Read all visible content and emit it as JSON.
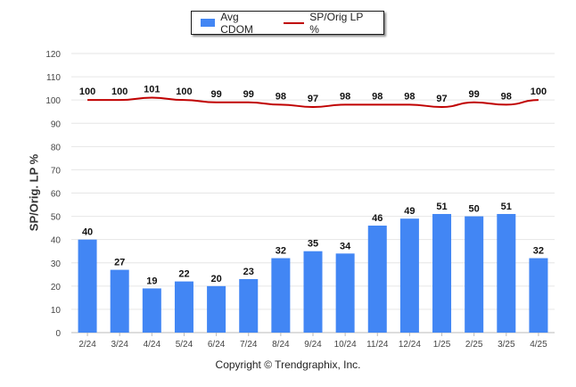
{
  "chart_data": {
    "type": "bar",
    "categories": [
      "2/24",
      "3/24",
      "4/24",
      "5/24",
      "6/24",
      "7/24",
      "8/24",
      "9/24",
      "10/24",
      "11/24",
      "12/24",
      "1/25",
      "2/25",
      "3/25",
      "4/25"
    ],
    "series": [
      {
        "name": "Avg CDOM",
        "type": "bar",
        "color": "#4286f4",
        "values": [
          40,
          27,
          19,
          22,
          20,
          23,
          32,
          35,
          34,
          46,
          49,
          51,
          50,
          51,
          32
        ]
      },
      {
        "name": "SP/Orig LP %",
        "type": "line",
        "color": "#c00000",
        "values": [
          100,
          100,
          101,
          100,
          99,
          99,
          98,
          97,
          98,
          98,
          98,
          97,
          99,
          98,
          100
        ]
      }
    ],
    "ylabel": "SP/Orig. LP %",
    "ylim": [
      0,
      120
    ],
    "yticks": [
      0,
      10,
      20,
      30,
      40,
      50,
      60,
      70,
      80,
      90,
      100,
      110,
      120
    ],
    "grid": true,
    "legend_position": "top-center"
  },
  "footer": {
    "copyright": "Copyright © Trendgraphix, Inc."
  }
}
